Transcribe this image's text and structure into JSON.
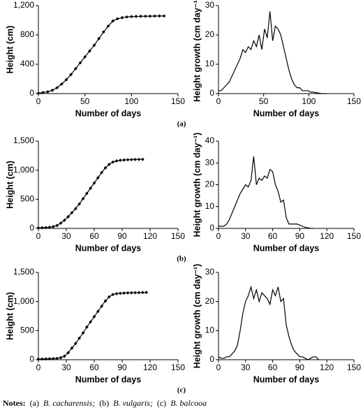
{
  "chart_data": [
    {
      "type": "line",
      "xlabel": "Number of days",
      "ylabel": "Height (cm)",
      "marker": "diamond",
      "color": "#000000",
      "xlim": [
        0,
        150
      ],
      "xticks": [
        0,
        50,
        100,
        150
      ],
      "ylim": [
        0,
        1200
      ],
      "yticks": [
        0,
        400,
        800,
        {
          "value": 1200,
          "label": "1,200"
        }
      ],
      "x": [
        0,
        5,
        10,
        15,
        20,
        25,
        30,
        35,
        40,
        45,
        50,
        55,
        60,
        65,
        70,
        75,
        80,
        85,
        90,
        95,
        100,
        105,
        110,
        115,
        120,
        125,
        130,
        135
      ],
      "values": [
        5,
        15,
        25,
        45,
        80,
        130,
        190,
        260,
        340,
        420,
        500,
        580,
        660,
        750,
        840,
        920,
        990,
        1020,
        1035,
        1045,
        1050,
        1052,
        1054,
        1055,
        1056,
        1057,
        1058,
        1058
      ]
    },
    {
      "type": "line",
      "xlabel": "Number of days",
      "ylabel": "Height growth (cm day⁻¹)",
      "color": "#000000",
      "xlim": [
        0,
        150
      ],
      "xticks": [
        0,
        50,
        100,
        150
      ],
      "ylim": [
        0,
        30
      ],
      "yticks": [
        0,
        10,
        20,
        30
      ],
      "x": [
        0,
        3,
        6,
        9,
        12,
        15,
        18,
        21,
        24,
        27,
        30,
        33,
        36,
        39,
        42,
        45,
        48,
        51,
        54,
        57,
        60,
        63,
        66,
        69,
        72,
        75,
        78,
        81,
        84,
        87,
        90,
        93,
        96,
        99,
        102,
        105,
        108,
        111,
        114,
        117,
        120
      ],
      "values": [
        1,
        1,
        2,
        3,
        4,
        6,
        8,
        10,
        12,
        15,
        14,
        16,
        15,
        18,
        16,
        20,
        15,
        22,
        19,
        28,
        18,
        23,
        22,
        20,
        16,
        12,
        8,
        5,
        3,
        2,
        2,
        1,
        1,
        1,
        0.5,
        0.5,
        0.3,
        0.2,
        0,
        0,
        0
      ]
    },
    {
      "type": "line",
      "xlabel": "Number of days",
      "ylabel": "Height (cm)",
      "marker": "diamond",
      "color": "#000000",
      "xlim": [
        0,
        150
      ],
      "xticks": [
        0,
        30,
        60,
        90,
        120,
        150
      ],
      "ylim": [
        0,
        1500
      ],
      "yticks": [
        0,
        500,
        {
          "value": 1000,
          "label": "1,000"
        },
        {
          "value": 1500,
          "label": "1,500"
        }
      ],
      "x": [
        0,
        4,
        8,
        12,
        16,
        20,
        24,
        28,
        32,
        36,
        40,
        44,
        48,
        52,
        56,
        60,
        64,
        68,
        72,
        76,
        80,
        84,
        88,
        92,
        96,
        100,
        104,
        108,
        112
      ],
      "values": [
        10,
        12,
        15,
        20,
        30,
        50,
        90,
        140,
        200,
        270,
        340,
        420,
        510,
        600,
        690,
        780,
        870,
        960,
        1040,
        1100,
        1140,
        1160,
        1170,
        1175,
        1180,
        1182,
        1184,
        1185,
        1186
      ]
    },
    {
      "type": "line",
      "xlabel": "Number of days",
      "ylabel": "Height growth (cm day⁻¹)",
      "color": "#000000",
      "xlim": [
        0,
        150
      ],
      "xticks": [
        0,
        30,
        60,
        90,
        120,
        150
      ],
      "ylim": [
        0,
        40
      ],
      "yticks": [
        0,
        10,
        20,
        30,
        40
      ],
      "x": [
        0,
        3,
        6,
        9,
        12,
        15,
        18,
        21,
        24,
        27,
        30,
        33,
        36,
        39,
        42,
        45,
        48,
        51,
        54,
        57,
        60,
        63,
        66,
        69,
        72,
        75,
        78,
        81,
        84,
        87,
        90,
        93,
        96,
        99,
        102,
        105
      ],
      "values": [
        1,
        1,
        1,
        2,
        4,
        7,
        10,
        13,
        16,
        18,
        20,
        19,
        22,
        33,
        20,
        23,
        22,
        24,
        23,
        27,
        26,
        20,
        17,
        12,
        13,
        5,
        2,
        2,
        2,
        2,
        1.5,
        1,
        0.5,
        0.3,
        0,
        0
      ]
    },
    {
      "type": "line",
      "xlabel": "Number of days",
      "ylabel": "Height (cm)",
      "marker": "diamond",
      "color": "#000000",
      "xlim": [
        0,
        150
      ],
      "xticks": [
        0,
        30,
        60,
        90,
        120,
        150
      ],
      "ylim": [
        0,
        1500
      ],
      "yticks": [
        0,
        500,
        {
          "value": 1000,
          "label": "1,000"
        },
        {
          "value": 1500,
          "label": "1,500"
        }
      ],
      "x": [
        0,
        4,
        8,
        12,
        16,
        20,
        24,
        28,
        32,
        36,
        40,
        44,
        48,
        52,
        56,
        60,
        64,
        68,
        72,
        76,
        80,
        84,
        88,
        92,
        96,
        100,
        104,
        108,
        112,
        116
      ],
      "values": [
        10,
        12,
        14,
        16,
        18,
        22,
        35,
        60,
        120,
        200,
        280,
        370,
        460,
        560,
        650,
        740,
        830,
        920,
        1010,
        1080,
        1120,
        1135,
        1140,
        1145,
        1148,
        1150,
        1152,
        1153,
        1155,
        1156
      ]
    },
    {
      "type": "line",
      "xlabel": "Number of days",
      "ylabel": "Height growth (cm day⁻¹)",
      "color": "#000000",
      "xlim": [
        0,
        150
      ],
      "xticks": [
        0,
        30,
        60,
        90,
        120,
        150
      ],
      "ylim": [
        0,
        30
      ],
      "yticks": [
        0,
        10,
        20,
        30
      ],
      "x": [
        0,
        3,
        6,
        9,
        12,
        15,
        18,
        21,
        24,
        27,
        30,
        33,
        36,
        39,
        42,
        45,
        48,
        51,
        54,
        57,
        60,
        63,
        66,
        69,
        72,
        75,
        78,
        81,
        84,
        87,
        90,
        93,
        96,
        99,
        102,
        105,
        108,
        111
      ],
      "values": [
        1,
        0.5,
        0.5,
        1,
        1,
        2,
        3,
        5,
        10,
        16,
        20,
        22,
        25,
        21,
        24,
        20,
        23,
        22,
        21,
        19,
        24,
        22,
        25,
        20,
        21,
        12,
        8,
        5,
        3,
        2,
        1,
        1,
        0.5,
        0,
        0.5,
        1,
        1,
        0
      ]
    }
  ],
  "captions": [
    "(a)",
    "(b)",
    "(c)"
  ],
  "notes": {
    "label": "Notes:",
    "items": [
      "(a)",
      "B. cacharensis;",
      "(b)",
      "B. vulgaris;",
      "(c)",
      "B. balcooa"
    ]
  }
}
